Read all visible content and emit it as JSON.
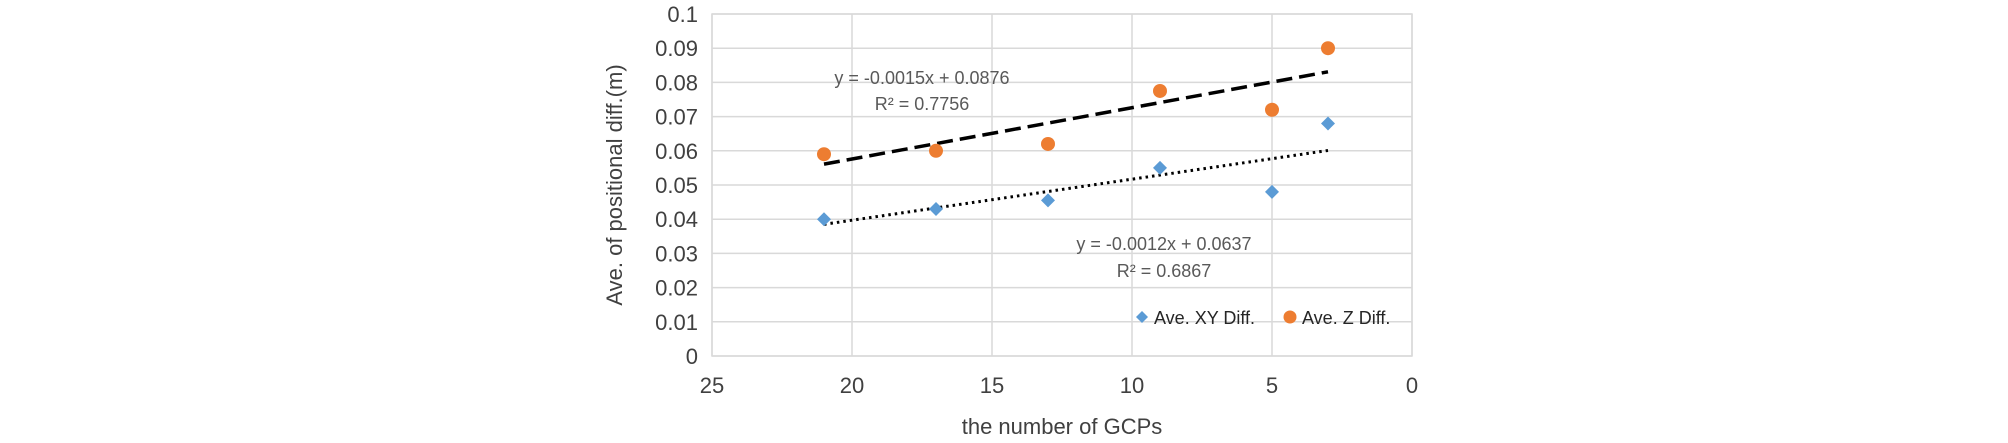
{
  "chart_data": {
    "type": "scatter",
    "xlabel": "the number of GCPs",
    "ylabel": "Ave. of positional  diff.(m)",
    "xlim": [
      25,
      0
    ],
    "x_reversed": true,
    "ylim": [
      0,
      0.1
    ],
    "x_ticks": [
      "25",
      "20",
      "15",
      "10",
      "5",
      "0"
    ],
    "y_ticks": [
      "0",
      "0.01",
      "0.02",
      "0.03",
      "0.04",
      "0.05",
      "0.06",
      "0.07",
      "0.08",
      "0.09",
      "0.1"
    ],
    "grid": true,
    "legend_position": "bottom-right",
    "series": [
      {
        "name": "Ave. XY Diff.",
        "marker": "diamond",
        "color": "#5b9bd5",
        "x": [
          21,
          17,
          13,
          9,
          5,
          3
        ],
        "y": [
          0.04,
          0.043,
          0.0455,
          0.055,
          0.048,
          0.068
        ],
        "trendline": {
          "style": "dotted",
          "x_range": [
            21,
            3
          ],
          "equation": "y = -0.0012x + 0.0637",
          "r2": "R² = 0.6867",
          "slope": -0.0012,
          "intercept": 0.0637
        }
      },
      {
        "name": "Ave. Z Diff.",
        "marker": "circle",
        "color": "#ed7d31",
        "x": [
          21,
          17,
          13,
          9,
          5,
          3
        ],
        "y": [
          0.059,
          0.06,
          0.062,
          0.0775,
          0.072,
          0.09
        ],
        "trendline": {
          "style": "dashed",
          "x_range": [
            21,
            3
          ],
          "equation": "y = -0.0015x + 0.0876",
          "r2": "R² = 0.7756",
          "slope": -0.0015,
          "intercept": 0.0876
        }
      }
    ]
  }
}
